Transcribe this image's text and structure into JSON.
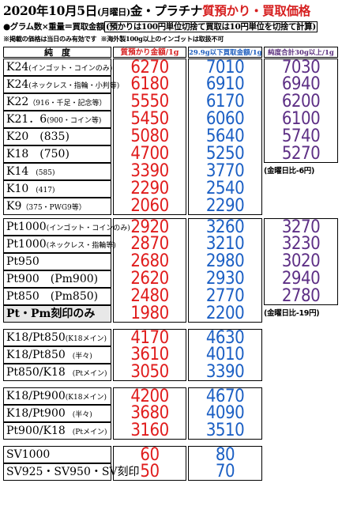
{
  "header": {
    "date_part": "2020年10月5日",
    "weekday": "(月曜日)",
    "metal": "金・プラチナ",
    "title_red": "質預かり・買取価格",
    "note_formula": "●グラム数×重量＝買取金額",
    "note_rounding": "(預かりは100円単位切捨て買取は10円単位を切捨て計算)",
    "note_valid": "※掲載の価格は当日のみ有効です",
    "note_overseas": "※海外製100g以上のインゴットは取扱不可"
  },
  "columns": {
    "name": "純　度",
    "pawn": "質預かり金額/1g",
    "buy_under": "29.9g以下買取金額/1g",
    "buy_over": "純度合計30g以上/1g"
  },
  "groups": [
    {
      "rows": [
        {
          "name": "K24",
          "sub": "(インゴット・コインのみ)",
          "pawn": "6270",
          "buy": "7010",
          "over": "7030"
        },
        {
          "name": "K24",
          "sub": "(ネックレス・指輪・小判等)",
          "pawn": "6180",
          "buy": "6910",
          "over": "6940"
        },
        {
          "name": "K22",
          "sub": "（916・千足・記念等）",
          "pawn": "5550",
          "buy": "6170",
          "over": "6200"
        },
        {
          "name": "K21．6",
          "sub": "(900・コイン等)",
          "pawn": "5450",
          "buy": "6060",
          "over": "6100"
        },
        {
          "name": "K20　(835)",
          "sub": "",
          "pawn": "5080",
          "buy": "5640",
          "over": "5740"
        },
        {
          "name": "K18　(750)",
          "sub": "",
          "pawn": "4700",
          "buy": "5250",
          "over": "5270"
        },
        {
          "name": "K14",
          "sub": "　(585)",
          "pawn": "3390",
          "buy": "3770",
          "over": ""
        },
        {
          "name": "K10",
          "sub": "　(417)",
          "pawn": "2290",
          "buy": "2540",
          "over": ""
        },
        {
          "name": "K9",
          "sub": "（375・PWG9等）",
          "pawn": "2060",
          "buy": "2290",
          "over": ""
        }
      ],
      "diff": "(金曜日比-6円)"
    },
    {
      "rows": [
        {
          "name": "Pt1000",
          "sub": "(インゴット・コインのみ)",
          "pawn": "2920",
          "buy": "3260",
          "over": "3270"
        },
        {
          "name": "Pt1000",
          "sub": "(ネックレス・指輪等)",
          "pawn": "2870",
          "buy": "3210",
          "over": "3230"
        },
        {
          "name": "Pt950",
          "sub": "",
          "pawn": "2680",
          "buy": "2980",
          "over": "3020"
        },
        {
          "name": "Pt900　(Pm900)",
          "sub": "",
          "pawn": "2620",
          "buy": "2930",
          "over": "2940"
        },
        {
          "name": "Pt850　(Pm850)",
          "sub": "",
          "pawn": "2480",
          "buy": "2770",
          "over": "2780"
        },
        {
          "name": "Pt・Pm刻印のみ",
          "sub": "",
          "pawn": "1980",
          "buy": "2200",
          "over": ""
        }
      ],
      "diff": "(金曜日比-19円)"
    },
    {
      "rows": [
        {
          "name": "K18/Pt850",
          "sub": "(K18メイン)",
          "pawn": "4170",
          "buy": "4630",
          "over": ""
        },
        {
          "name": "K18/Pt850",
          "sub": "　(半々)",
          "pawn": "3610",
          "buy": "4010",
          "over": ""
        },
        {
          "name": "Pt850/K18",
          "sub": "　(Ptメイン)",
          "pawn": "3050",
          "buy": "3390",
          "over": ""
        }
      ]
    },
    {
      "rows": [
        {
          "name": "K18/Pt900",
          "sub": "(K18メイン)",
          "pawn": "4200",
          "buy": "4670",
          "over": ""
        },
        {
          "name": "K18/Pt900",
          "sub": "　(半々)",
          "pawn": "3680",
          "buy": "4090",
          "over": ""
        },
        {
          "name": "Pt900/K18",
          "sub": "　(Ptメイン)",
          "pawn": "3160",
          "buy": "3510",
          "over": ""
        }
      ]
    },
    {
      "rows": [
        {
          "name": "SV1000",
          "sub": "",
          "pawn": "60",
          "buy": "80",
          "over": ""
        },
        {
          "name": "SV925・SV950・SV刻印",
          "sub": "",
          "pawn": "50",
          "buy": "70",
          "over": ""
        }
      ]
    }
  ]
}
